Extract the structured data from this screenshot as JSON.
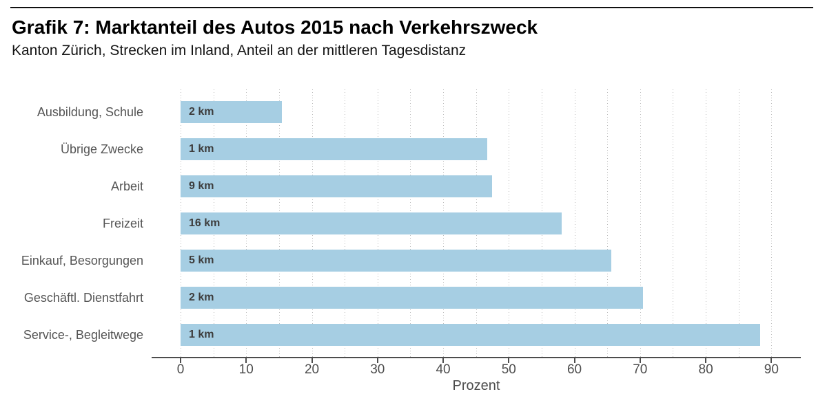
{
  "header": {
    "title": "Grafik 7: Marktanteil des Autos 2015 nach Verkehrszweck",
    "subtitle": "Kanton Zürich, Strecken im Inland, Anteil an der mittleren Tagesdistanz"
  },
  "chart_data": {
    "type": "bar",
    "orientation": "horizontal",
    "title": "Grafik 7: Marktanteil des Autos 2015 nach Verkehrszweck",
    "subtitle": "Kanton Zürich, Strecken im Inland, Anteil an der mittleren Tagesdistanz",
    "xlabel": "Prozent",
    "xlim": [
      0,
      95
    ],
    "x_ticks": [
      0,
      10,
      20,
      30,
      40,
      50,
      60,
      70,
      80,
      90
    ],
    "grid_step": 5,
    "grid_max": 90,
    "grid_style": "dotted",
    "legend": "none",
    "categories": [
      "Ausbildung, Schule",
      "Übrige Zwecke",
      "Arbeit",
      "Freizeit",
      "Einkauf, Besorgungen",
      "Geschäftl. Dienstfahrt",
      "Service-, Begleitwege"
    ],
    "values": [
      15.4,
      46.7,
      47.4,
      58.1,
      65.6,
      70.4,
      88.3
    ],
    "bar_labels": [
      "2 km",
      "1 km",
      "9 km",
      "16 km",
      "5 km",
      "2 km",
      "1 km"
    ]
  },
  "colors": {
    "bar_fill": "#a6cee3",
    "axis_line": "#4d4d4d",
    "gridline": "#bcbcbc",
    "category_label": "#555555",
    "tick_label": "#4d4d4d",
    "bar_label": "#3d3d3d",
    "title": "#000000",
    "top_rule": "#111111"
  }
}
